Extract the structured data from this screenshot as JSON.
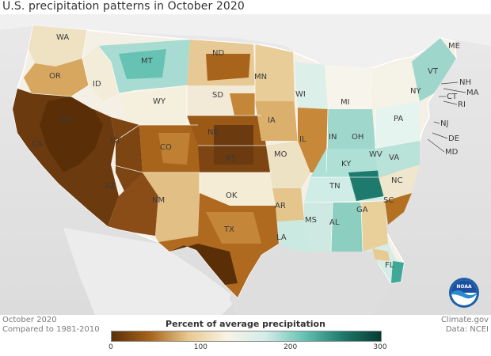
{
  "title": "U.S. precipitation patterns in October 2020",
  "footer": {
    "month": "October 2020",
    "baseline": "Compared to 1981-2010",
    "source_site": "Climate.gov",
    "data_source": "Data: NCEI"
  },
  "legend": {
    "title": "Percent of average precipitation",
    "ticks": [
      "0",
      "100",
      "200",
      "300"
    ],
    "tick_values": [
      0,
      100,
      200,
      300
    ],
    "range": [
      0,
      300
    ],
    "colors": [
      "#5a2f08",
      "#a8641a",
      "#e9c98f",
      "#f7f3e6",
      "#d4ede8",
      "#66c2b3",
      "#1d7a6c",
      "#073b33"
    ]
  },
  "logo": {
    "name": "noaa-logo",
    "text": "NOAA"
  },
  "state_labels": [
    {
      "id": "WA",
      "text": "WA"
    },
    {
      "id": "OR",
      "text": "OR"
    },
    {
      "id": "CA",
      "text": "CA"
    },
    {
      "id": "NV",
      "text": "NV"
    },
    {
      "id": "ID",
      "text": "ID"
    },
    {
      "id": "MT",
      "text": "MT"
    },
    {
      "id": "WY",
      "text": "WY"
    },
    {
      "id": "UT",
      "text": "UT"
    },
    {
      "id": "AZ",
      "text": "AZ"
    },
    {
      "id": "CO",
      "text": "CO"
    },
    {
      "id": "NM",
      "text": "NM"
    },
    {
      "id": "ND",
      "text": "ND"
    },
    {
      "id": "SD",
      "text": "SD"
    },
    {
      "id": "NE",
      "text": "NE"
    },
    {
      "id": "KS",
      "text": "KS"
    },
    {
      "id": "OK",
      "text": "OK"
    },
    {
      "id": "TX",
      "text": "TX"
    },
    {
      "id": "MN",
      "text": "MN"
    },
    {
      "id": "IA",
      "text": "IA"
    },
    {
      "id": "MO",
      "text": "MO"
    },
    {
      "id": "AR",
      "text": "AR"
    },
    {
      "id": "LA",
      "text": "LA"
    },
    {
      "id": "WI",
      "text": "WI"
    },
    {
      "id": "IL",
      "text": "IL"
    },
    {
      "id": "MI",
      "text": "MI"
    },
    {
      "id": "IN",
      "text": "IN"
    },
    {
      "id": "OH",
      "text": "OH"
    },
    {
      "id": "KY",
      "text": "KY"
    },
    {
      "id": "TN",
      "text": "TN"
    },
    {
      "id": "MS",
      "text": "MS"
    },
    {
      "id": "AL",
      "text": "AL"
    },
    {
      "id": "GA",
      "text": "GA"
    },
    {
      "id": "FL",
      "text": "FL"
    },
    {
      "id": "SC",
      "text": "SC"
    },
    {
      "id": "NC",
      "text": "NC"
    },
    {
      "id": "VA",
      "text": "VA"
    },
    {
      "id": "WV",
      "text": "WV"
    },
    {
      "id": "PA",
      "text": "PA"
    },
    {
      "id": "NY",
      "text": "NY"
    },
    {
      "id": "VT",
      "text": "VT"
    },
    {
      "id": "NH",
      "text": "NH"
    },
    {
      "id": "ME",
      "text": "ME"
    },
    {
      "id": "MA",
      "text": "MA"
    },
    {
      "id": "CT",
      "text": "CT"
    },
    {
      "id": "RI",
      "text": "RI"
    },
    {
      "id": "NJ",
      "text": "NJ"
    },
    {
      "id": "DE",
      "text": "DE"
    },
    {
      "id": "MD",
      "text": "MD"
    }
  ]
}
